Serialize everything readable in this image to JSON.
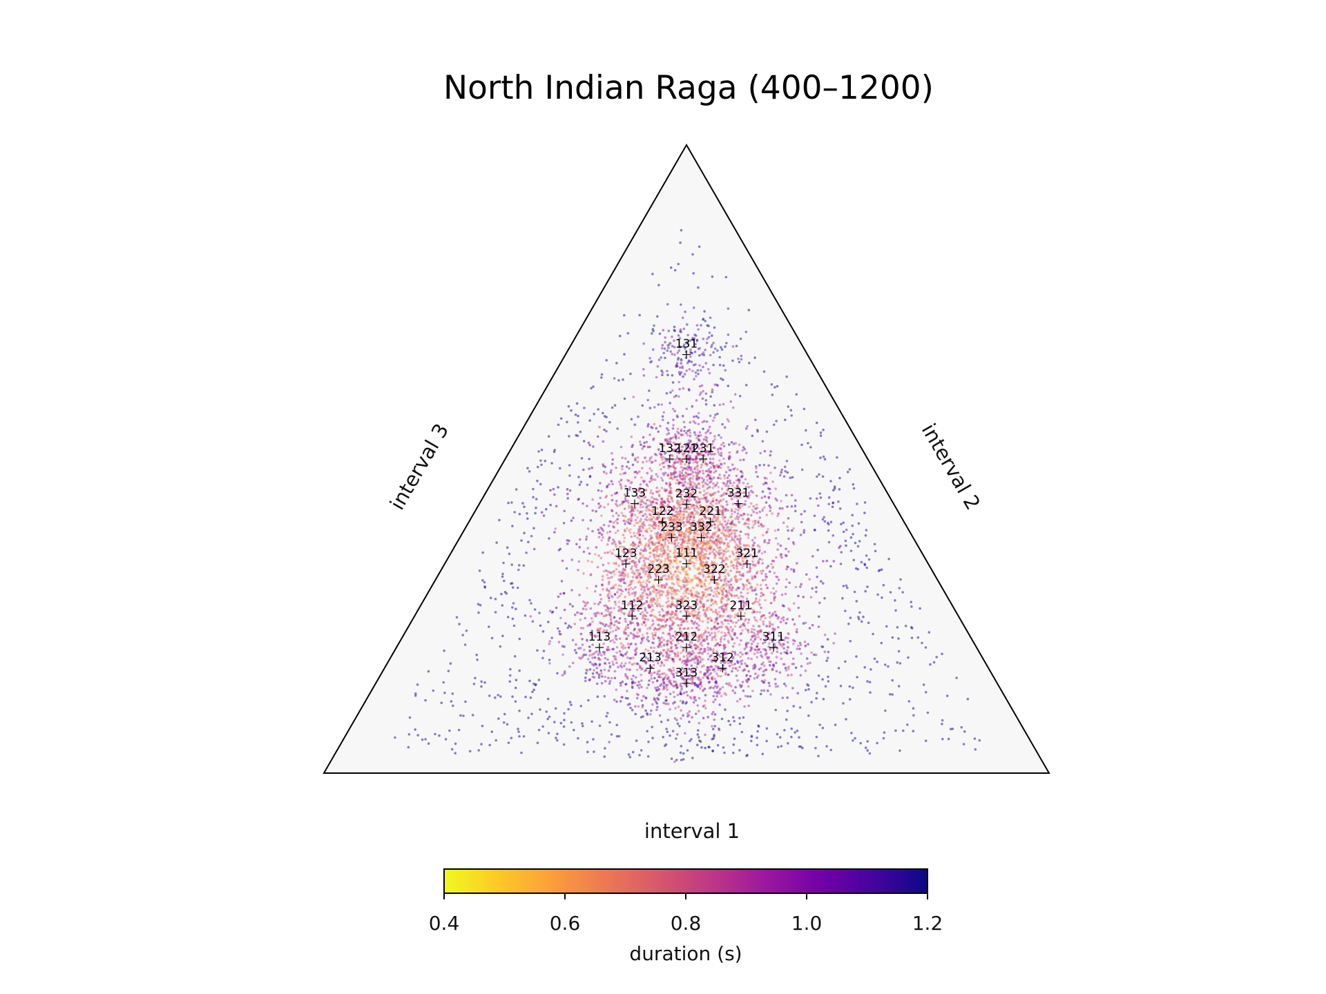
{
  "chart_data": {
    "type": "scatter",
    "subtype": "ternary",
    "title": "North Indian Raga (400–1200)",
    "axes": {
      "bottom": "interval 1",
      "right": "interval 2",
      "left": "interval 3"
    },
    "grid": false,
    "background": "#f7f7f7",
    "markers": [
      {
        "label": "131",
        "a": 0.167,
        "b": 0.167,
        "c": 0.667
      },
      {
        "label": "132",
        "a": 0.273,
        "b": 0.227,
        "c": 0.5
      },
      {
        "label": "121",
        "a": 0.25,
        "b": 0.25,
        "c": 0.5
      },
      {
        "label": "231",
        "a": 0.227,
        "b": 0.273,
        "c": 0.5
      },
      {
        "label": "133",
        "a": 0.357,
        "b": 0.214,
        "c": 0.429
      },
      {
        "label": "232",
        "a": 0.286,
        "b": 0.286,
        "c": 0.428
      },
      {
        "label": "331",
        "a": 0.214,
        "b": 0.357,
        "c": 0.429
      },
      {
        "label": "122",
        "a": 0.333,
        "b": 0.267,
        "c": 0.4
      },
      {
        "label": "221",
        "a": 0.267,
        "b": 0.333,
        "c": 0.4
      },
      {
        "label": "233",
        "a": 0.333,
        "b": 0.292,
        "c": 0.375
      },
      {
        "label": "332",
        "a": 0.292,
        "b": 0.333,
        "c": 0.375
      },
      {
        "label": "123",
        "a": 0.417,
        "b": 0.25,
        "c": 0.333
      },
      {
        "label": "111",
        "a": 0.333,
        "b": 0.333,
        "c": 0.333
      },
      {
        "label": "321",
        "a": 0.25,
        "b": 0.417,
        "c": 0.333
      },
      {
        "label": "223",
        "a": 0.385,
        "b": 0.308,
        "c": 0.308
      },
      {
        "label": "322",
        "a": 0.308,
        "b": 0.385,
        "c": 0.308
      },
      {
        "label": "112",
        "a": 0.45,
        "b": 0.3,
        "c": 0.25
      },
      {
        "label": "323",
        "a": 0.375,
        "b": 0.375,
        "c": 0.25
      },
      {
        "label": "211",
        "a": 0.3,
        "b": 0.45,
        "c": 0.25
      },
      {
        "label": "113",
        "a": 0.52,
        "b": 0.28,
        "c": 0.2
      },
      {
        "label": "212",
        "a": 0.4,
        "b": 0.4,
        "c": 0.2
      },
      {
        "label": "311",
        "a": 0.28,
        "b": 0.52,
        "c": 0.2
      },
      {
        "label": "213",
        "a": 0.467,
        "b": 0.367,
        "c": 0.167
      },
      {
        "label": "312",
        "a": 0.367,
        "b": 0.467,
        "c": 0.167
      },
      {
        "label": "313",
        "a": 0.429,
        "b": 0.429,
        "c": 0.143
      }
    ],
    "colorbar": {
      "label": "duration (s)",
      "range": [
        0.4,
        1.2
      ],
      "ticks": [
        "0.4",
        "0.6",
        "0.8",
        "1.0",
        "1.2"
      ],
      "colormap": "plasma_r",
      "colors": [
        "#f0f921",
        "#fdca26",
        "#fb9f3a",
        "#ed7953",
        "#d8576b",
        "#bd3786",
        "#9c179e",
        "#7201a8",
        "#46039f",
        "#0d0887"
      ]
    }
  }
}
